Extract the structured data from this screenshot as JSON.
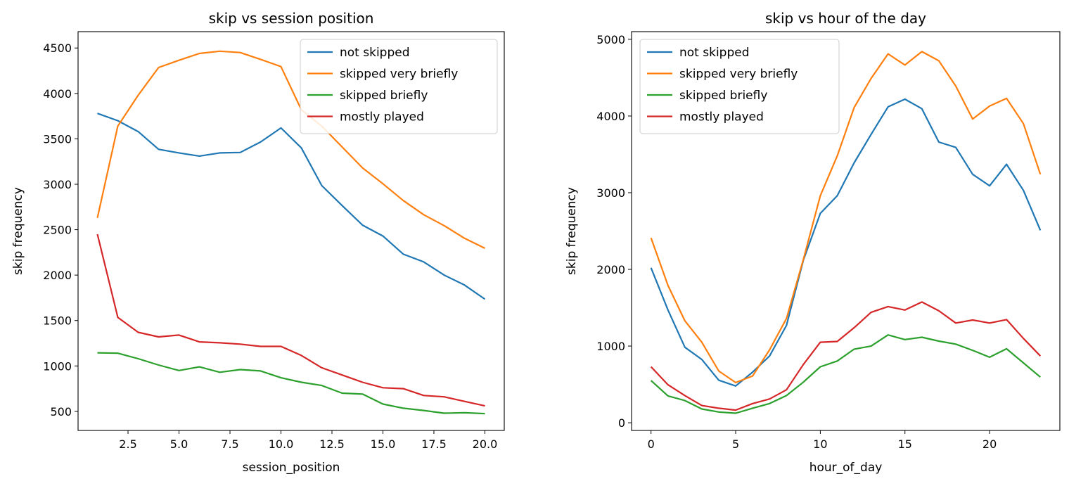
{
  "colors": {
    "not_skipped": "#1f77b4",
    "skipped_very_briefly": "#ff7f0e",
    "skipped_briefly": "#2ca02c",
    "mostly_played": "#d62728"
  },
  "chart_data": [
    {
      "type": "line",
      "title": "skip vs session position",
      "xlabel": "session_position",
      "ylabel": "skip frequency",
      "xlim": [
        0.05,
        20.95
      ],
      "ylim": [
        290,
        4680
      ],
      "xticks": [
        2.5,
        5.0,
        7.5,
        10.0,
        12.5,
        15.0,
        17.5,
        20.0
      ],
      "xtick_labels": [
        "2.5",
        "5.0",
        "7.5",
        "10.0",
        "12.5",
        "15.0",
        "17.5",
        "20.0"
      ],
      "yticks": [
        500,
        1000,
        1500,
        2000,
        2500,
        3000,
        3500,
        4000,
        4500
      ],
      "ytick_labels": [
        "500",
        "1000",
        "1500",
        "2000",
        "2500",
        "3000",
        "3500",
        "4000",
        "4500"
      ],
      "legend_position": "upper right",
      "grid": false,
      "x": [
        1,
        2,
        3,
        4,
        5,
        6,
        7,
        8,
        9,
        10,
        11,
        12,
        13,
        14,
        15,
        16,
        17,
        18,
        19,
        20
      ],
      "series": [
        {
          "name": "not skipped",
          "color_key": "not_skipped",
          "values": [
            3780,
            3700,
            3580,
            3385,
            3345,
            3310,
            3345,
            3350,
            3465,
            3620,
            3400,
            2985,
            2765,
            2550,
            2430,
            2230,
            2145,
            2000,
            1890,
            1735
          ]
        },
        {
          "name": "skipped very briefly",
          "color_key": "skipped_very_briefly",
          "values": [
            2630,
            3640,
            3980,
            4285,
            4365,
            4440,
            4465,
            4450,
            4375,
            4295,
            3820,
            3640,
            3410,
            3180,
            3005,
            2820,
            2665,
            2545,
            2405,
            2295
          ]
        },
        {
          "name": "skipped briefly",
          "color_key": "skipped_briefly",
          "values": [
            1145,
            1140,
            1080,
            1010,
            950,
            990,
            930,
            960,
            945,
            870,
            820,
            785,
            700,
            690,
            580,
            535,
            510,
            480,
            485,
            475
          ]
        },
        {
          "name": "mostly played",
          "color_key": "mostly_played",
          "values": [
            2450,
            1535,
            1370,
            1320,
            1340,
            1265,
            1255,
            1240,
            1215,
            1215,
            1115,
            980,
            900,
            820,
            760,
            750,
            675,
            660,
            610,
            560
          ]
        }
      ]
    },
    {
      "type": "line",
      "title": "skip vs hour of the day",
      "xlabel": "hour_of_day",
      "ylabel": "skip frequency",
      "xlim": [
        -1.15,
        24.15
      ],
      "ylim": [
        -100,
        5100
      ],
      "xticks": [
        0,
        5,
        10,
        15,
        20
      ],
      "xtick_labels": [
        "0",
        "5",
        "10",
        "15",
        "20"
      ],
      "yticks": [
        0,
        1000,
        2000,
        3000,
        4000,
        5000
      ],
      "ytick_labels": [
        "0",
        "1000",
        "2000",
        "3000",
        "4000",
        "5000"
      ],
      "legend_position": "upper left",
      "grid": false,
      "x": [
        0,
        1,
        2,
        3,
        4,
        5,
        6,
        7,
        8,
        9,
        10,
        11,
        12,
        13,
        14,
        15,
        16,
        17,
        18,
        19,
        20,
        21,
        22,
        23
      ],
      "series": [
        {
          "name": "not skipped",
          "color_key": "not_skipped",
          "values": [
            2020,
            1470,
            985,
            825,
            555,
            480,
            660,
            870,
            1270,
            2120,
            2730,
            2960,
            3390,
            3760,
            4120,
            4220,
            4095,
            3660,
            3590,
            3240,
            3090,
            3370,
            3030,
            2510
          ]
        },
        {
          "name": "skipped very briefly",
          "color_key": "skipped_very_briefly",
          "values": [
            2410,
            1790,
            1330,
            1050,
            675,
            525,
            610,
            950,
            1360,
            2130,
            2960,
            3480,
            4110,
            4490,
            4810,
            4665,
            4840,
            4720,
            4390,
            3960,
            4130,
            4230,
            3900,
            3240
          ]
        },
        {
          "name": "skipped briefly",
          "color_key": "skipped_briefly",
          "values": [
            550,
            350,
            290,
            180,
            140,
            125,
            190,
            250,
            355,
            530,
            730,
            805,
            960,
            1000,
            1145,
            1085,
            1115,
            1065,
            1025,
            945,
            855,
            965,
            780,
            595
          ]
        },
        {
          "name": "mostly played",
          "color_key": "mostly_played",
          "values": [
            730,
            495,
            355,
            225,
            190,
            165,
            250,
            310,
            430,
            760,
            1050,
            1060,
            1240,
            1440,
            1515,
            1470,
            1575,
            1460,
            1300,
            1340,
            1300,
            1345,
            1100,
            870
          ]
        }
      ]
    }
  ]
}
